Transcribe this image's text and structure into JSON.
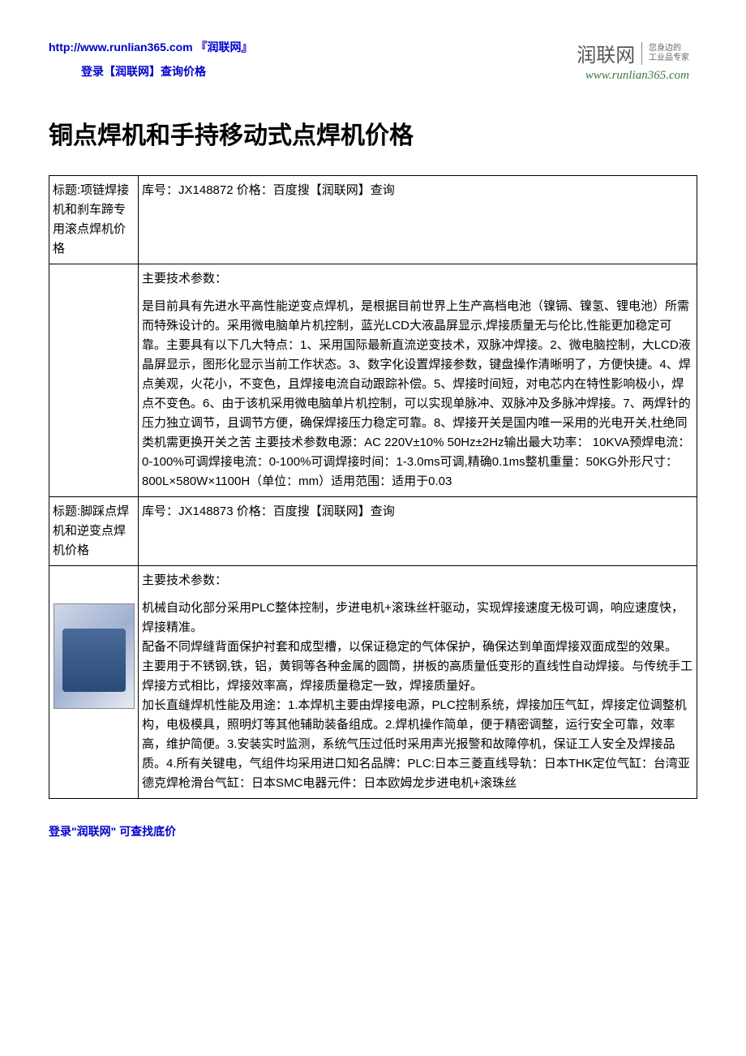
{
  "header": {
    "url_text": "http://www.runlian365.com",
    "brand_suffix": "『润联网』",
    "login_text": "登录【润联网】查询价格",
    "logo_main": "润联网",
    "logo_sub_line1": "您身边的",
    "logo_sub_line2": "工业品专家",
    "logo_url": "www.runlian365.com"
  },
  "main_title": "铜点焊机和手持移动式点焊机价格",
  "rows": [
    {
      "left": "标题:项链焊接机和刹车蹄专用滚点焊机价格",
      "right": "库号：JX148872 价格：百度搜【润联网】查询"
    },
    {
      "left_image": false,
      "section_label": "主要技术参数：",
      "body": "是目前具有先进水平高性能逆变点焊机，是根据目前世界上生产高档电池（镍镉、镍氢、锂电池）所需而特殊设计的。采用微电脑单片机控制，蓝光LCD大液晶屏显示,焊接质量无与伦比,性能更加稳定可靠。主要具有以下几大特点：1、采用国际最新直流逆变技术，双脉冲焊接。2、微电脑控制，大LCD液晶屏显示，图形化显示当前工作状态。3、数字化设置焊接参数，键盘操作清晰明了，方便快捷。4、焊点美观，火花小，不变色，且焊接电流自动跟踪补偿。5、焊接时间短，对电芯内在特性影响极小，焊点不变色。6、由于该机采用微电脑单片机控制，可以实现单脉冲、双脉冲及多脉冲焊接。7、两焊针的压力独立调节，且调节方便，确保焊接压力稳定可靠。8、焊接开关是国内唯一采用的光电开关,杜绝同类机需更换开关之苦 主要技术参数电源：AC 220V±10% 50Hz±2Hz输出最大功率： 10KVA预焊电流：0-100%可调焊接电流：0-100%可调焊接时间：1-3.0ms可调,精确0.1ms整机重量：50KG外形尺寸：800L×580W×1100H（单位：mm）适用范围：适用于0.03"
    },
    {
      "left": "标题:脚踩点焊机和逆变点焊机价格",
      "right": "库号：JX148873 价格：百度搜【润联网】查询"
    },
    {
      "left_image": true,
      "section_label": "主要技术参数：",
      "body": "机械自动化部分采用PLC整体控制，步进电机+滚珠丝杆驱动，实现焊接速度无极可调，响应速度快，焊接精准。\n配备不同焊缝背面保护衬套和成型槽，以保证稳定的气体保护，确保达到单面焊接双面成型的效果。\n主要用于不锈钢,铁，铝，黄铜等各种金属的圆筒，拼板的高质量低变形的直线性自动焊接。与传统手工焊接方式相比，焊接效率高，焊接质量稳定一致，焊接质量好。\n加长直缝焊机性能及用途：1.本焊机主要由焊接电源，PLC控制系统，焊接加压气缸，焊接定位调整机构，电极模具，照明灯等其他辅助装备组成。2.焊机操作简单，便于精密调整，运行安全可靠，效率高，维护简便。3.安装实时监测，系统气压过低时采用声光报警和故障停机，保证工人安全及焊接品质。4.所有关键电，气组件均采用进口知名品牌：PLC:日本三菱直线导轨：日本THK定位气缸：台湾亚德克焊枪滑台气缸：日本SMC电器元件：日本欧姆龙步进电机+滚珠丝"
    }
  ],
  "footer": "登录\"润联网\" 可查找底价",
  "colors": {
    "link": "#0000cc",
    "text": "#000000",
    "border": "#000000",
    "logo_url": "#3a7a4a"
  }
}
